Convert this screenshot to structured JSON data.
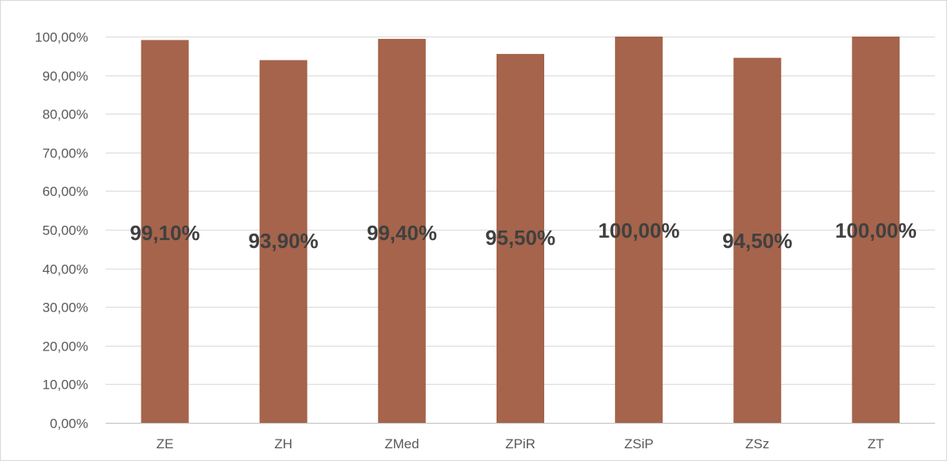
{
  "chart_data": {
    "type": "bar",
    "categories": [
      "ZE",
      "ZH",
      "ZMed",
      "ZPiR",
      "ZSiP",
      "ZSz",
      "ZT"
    ],
    "values": [
      99.1,
      93.9,
      99.4,
      95.5,
      100.0,
      94.5,
      100.0
    ],
    "data_labels": [
      "99,10%",
      "93,90%",
      "99,40%",
      "95,50%",
      "100,00%",
      "94,50%",
      "100,00%"
    ],
    "y_ticks": [
      0,
      10,
      20,
      30,
      40,
      50,
      60,
      70,
      80,
      90,
      100
    ],
    "y_tick_labels": [
      "0,00%",
      "10,00%",
      "20,00%",
      "30,00%",
      "40,00%",
      "50,00%",
      "60,00%",
      "70,00%",
      "80,00%",
      "90,00%",
      "100,00%"
    ],
    "ylim": [
      0,
      100
    ],
    "title": "",
    "xlabel": "",
    "ylabel": "",
    "grid": true,
    "legend": "none",
    "bar_color": "#a5644b",
    "label_color": "#404040"
  }
}
